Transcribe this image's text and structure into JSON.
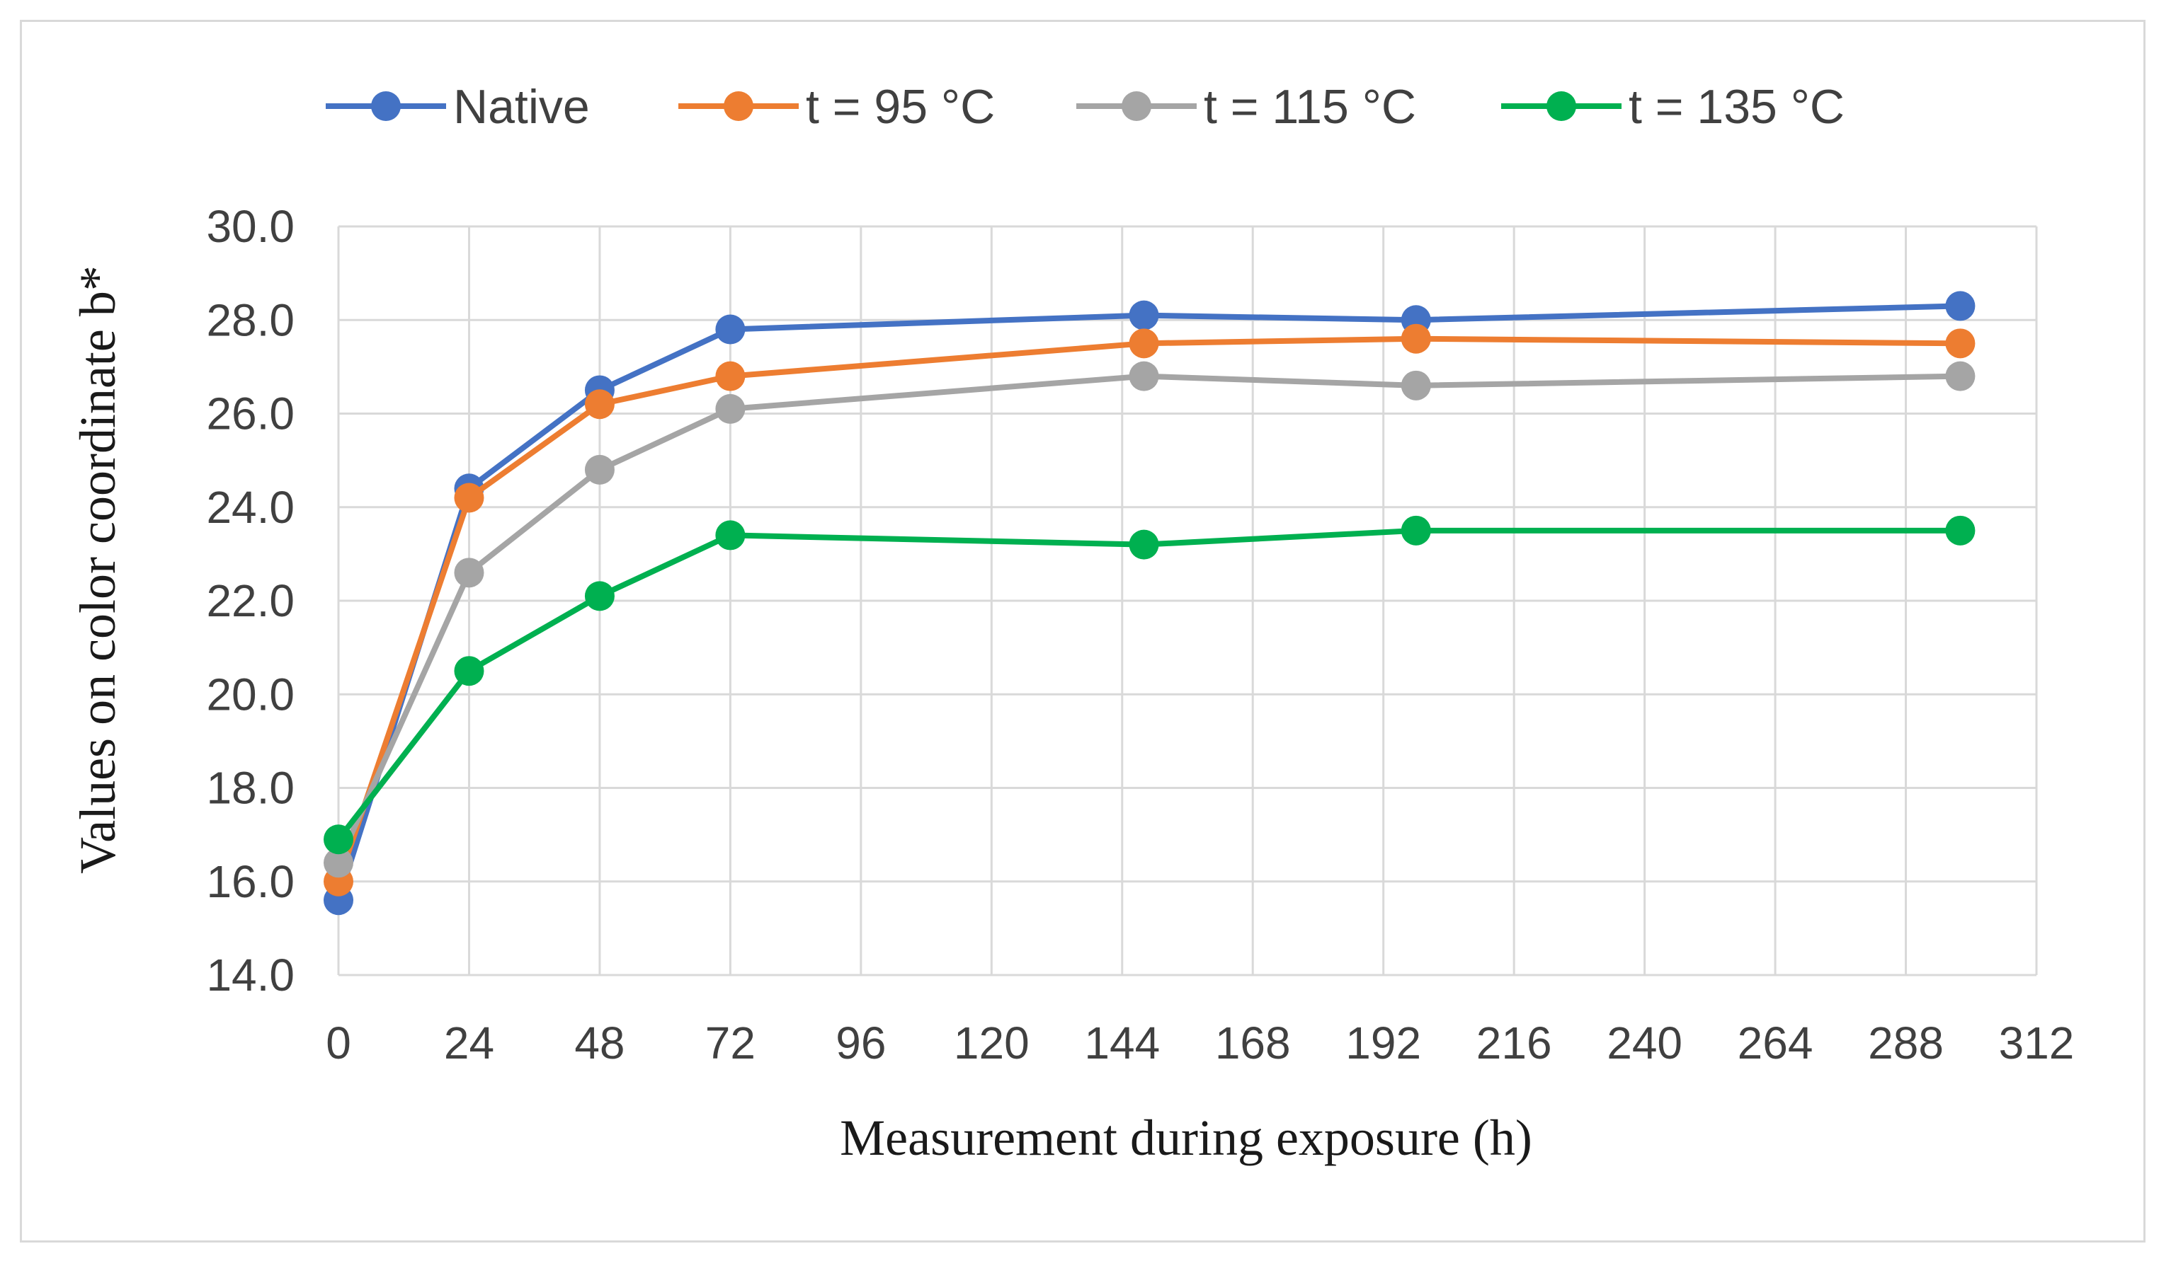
{
  "chart_data": {
    "type": "line",
    "title": "",
    "xlabel": "Measurement during exposure (h)",
    "ylabel": "Values on color coordinate b*",
    "xlim": [
      0,
      312
    ],
    "ylim": [
      14.0,
      30.0
    ],
    "x_ticks": [
      "0",
      "24",
      "48",
      "72",
      "96",
      "120",
      "144",
      "168",
      "192",
      "216",
      "240",
      "264",
      "288",
      "312"
    ],
    "y_ticks": [
      "14.0",
      "16.0",
      "18.0",
      "20.0",
      "22.0",
      "24.0",
      "26.0",
      "28.0",
      "30.0"
    ],
    "x_tick_values": [
      0,
      24,
      48,
      72,
      96,
      120,
      144,
      168,
      192,
      216,
      240,
      264,
      288,
      312
    ],
    "y_tick_values": [
      14,
      16,
      18,
      20,
      22,
      24,
      26,
      28,
      30
    ],
    "grid": true,
    "legend_position": "top",
    "x": [
      0,
      24,
      48,
      72,
      148,
      198,
      298
    ],
    "series": [
      {
        "name": "Native",
        "color": "#4472C4",
        "values": [
          15.6,
          24.4,
          26.5,
          27.8,
          28.1,
          28.0,
          28.3
        ]
      },
      {
        "name": "t = 95 °C",
        "color": "#ED7D31",
        "values": [
          16.0,
          24.2,
          26.2,
          26.8,
          27.5,
          27.6,
          27.5
        ]
      },
      {
        "name": "t = 115 °C",
        "color": "#A5A5A5",
        "values": [
          16.4,
          22.6,
          24.8,
          26.1,
          26.8,
          26.6,
          26.8
        ]
      },
      {
        "name": "t = 135 °C",
        "color": "#00B050",
        "values": [
          16.9,
          20.5,
          22.1,
          23.4,
          23.2,
          23.5,
          23.5
        ]
      }
    ]
  }
}
